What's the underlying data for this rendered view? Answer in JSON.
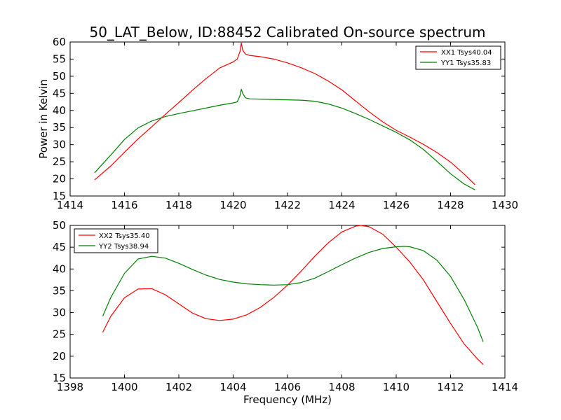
{
  "figure": {
    "title": "50_LAT_Below, ID:88452 Calibrated On-source spectrum"
  },
  "chart_data": [
    {
      "type": "line",
      "title": "50_LAT_Below, ID:88452 Calibrated On-source spectrum",
      "xlabel": "",
      "ylabel": "Power in Kelvin",
      "xlim": [
        1414,
        1430
      ],
      "ylim": [
        15,
        60
      ],
      "xticks": [
        1414,
        1416,
        1418,
        1420,
        1422,
        1424,
        1426,
        1428,
        1430
      ],
      "yticks": [
        15,
        20,
        25,
        30,
        35,
        40,
        45,
        50,
        55,
        60
      ],
      "legend_position": "top-right",
      "grid": false,
      "series": [
        {
          "name": "XX1 Tsys40.04",
          "color": "#ff0000",
          "x": [
            1414.9,
            1415.5,
            1416.0,
            1416.5,
            1417.0,
            1417.5,
            1418.0,
            1418.5,
            1419.0,
            1419.5,
            1420.0,
            1420.15,
            1420.25,
            1420.3,
            1420.35,
            1420.45,
            1420.6,
            1421.0,
            1421.5,
            1422.0,
            1422.5,
            1423.0,
            1423.5,
            1424.0,
            1424.5,
            1425.0,
            1425.5,
            1426.0,
            1426.5,
            1427.0,
            1427.5,
            1428.0,
            1428.5,
            1428.9
          ],
          "y": [
            19.7,
            23.8,
            27.8,
            31.7,
            35.2,
            38.8,
            42.3,
            45.9,
            49.3,
            52.4,
            54.2,
            55.0,
            57.2,
            59.7,
            57.6,
            56.5,
            56.1,
            55.7,
            55.0,
            53.9,
            52.5,
            50.8,
            48.6,
            46.0,
            42.8,
            39.6,
            36.7,
            34.2,
            32.2,
            30.1,
            27.7,
            24.9,
            21.4,
            18.3
          ]
        },
        {
          "name": "YY1 Tsys35.83",
          "color": "#008000",
          "x": [
            1414.9,
            1415.5,
            1416.0,
            1416.5,
            1417.0,
            1417.5,
            1418.0,
            1418.5,
            1419.0,
            1419.5,
            1420.0,
            1420.15,
            1420.25,
            1420.3,
            1420.35,
            1420.45,
            1420.6,
            1421.0,
            1421.5,
            1422.0,
            1422.5,
            1423.0,
            1423.5,
            1424.0,
            1424.5,
            1425.0,
            1425.5,
            1426.0,
            1426.5,
            1427.0,
            1427.5,
            1428.0,
            1428.5,
            1428.9
          ],
          "y": [
            21.8,
            27.0,
            31.5,
            34.9,
            36.9,
            38.2,
            39.1,
            39.9,
            40.7,
            41.5,
            42.2,
            42.5,
            44.3,
            46.2,
            45.0,
            43.7,
            43.4,
            43.3,
            43.2,
            43.1,
            43.0,
            42.7,
            41.9,
            40.7,
            39.1,
            37.4,
            35.5,
            33.6,
            31.4,
            28.6,
            25.1,
            21.5,
            18.5,
            16.8
          ]
        }
      ]
    },
    {
      "type": "line",
      "title": "",
      "xlabel": "Frequency (MHz)",
      "ylabel": "",
      "xlim": [
        1398,
        1414
      ],
      "ylim": [
        15,
        50
      ],
      "xticks": [
        1398,
        1400,
        1402,
        1404,
        1406,
        1408,
        1410,
        1412,
        1414
      ],
      "yticks": [
        15,
        20,
        25,
        30,
        35,
        40,
        45,
        50
      ],
      "legend_position": "top-left",
      "grid": false,
      "series": [
        {
          "name": "XX2 Tsys35.40",
          "color": "#ff0000",
          "x": [
            1399.2,
            1399.5,
            1400.0,
            1400.5,
            1401.0,
            1401.5,
            1402.0,
            1402.5,
            1403.0,
            1403.5,
            1404.0,
            1404.5,
            1405.0,
            1405.5,
            1406.0,
            1406.5,
            1407.0,
            1407.5,
            1408.0,
            1408.5,
            1408.7,
            1409.0,
            1409.5,
            1410.0,
            1410.5,
            1411.0,
            1411.5,
            1412.0,
            1412.5,
            1413.0,
            1413.2
          ],
          "y": [
            25.5,
            29.2,
            33.4,
            35.4,
            35.5,
            34.1,
            32.0,
            29.9,
            28.6,
            28.2,
            28.5,
            29.5,
            31.2,
            33.5,
            36.3,
            39.5,
            42.9,
            46.0,
            48.5,
            49.8,
            50.0,
            49.7,
            48.0,
            45.0,
            41.6,
            37.5,
            32.5,
            27.5,
            22.8,
            19.3,
            18.1
          ]
        },
        {
          "name": "YY2 Tsys38.94",
          "color": "#008000",
          "x": [
            1399.2,
            1399.5,
            1400.0,
            1400.5,
            1401.0,
            1401.5,
            1402.0,
            1402.5,
            1403.0,
            1403.5,
            1404.0,
            1404.5,
            1405.0,
            1405.5,
            1406.0,
            1406.5,
            1407.0,
            1407.5,
            1408.0,
            1408.5,
            1409.0,
            1409.5,
            1410.0,
            1410.3,
            1410.5,
            1411.0,
            1411.5,
            1412.0,
            1412.5,
            1413.0,
            1413.2
          ],
          "y": [
            29.2,
            33.5,
            39.0,
            42.3,
            42.9,
            42.5,
            41.3,
            39.9,
            38.6,
            37.6,
            37.0,
            36.6,
            36.4,
            36.3,
            36.4,
            36.9,
            37.9,
            39.4,
            41.0,
            42.5,
            43.8,
            44.7,
            45.1,
            45.2,
            45.1,
            44.2,
            42.0,
            38.3,
            33.0,
            26.5,
            23.3
          ]
        }
      ]
    }
  ]
}
